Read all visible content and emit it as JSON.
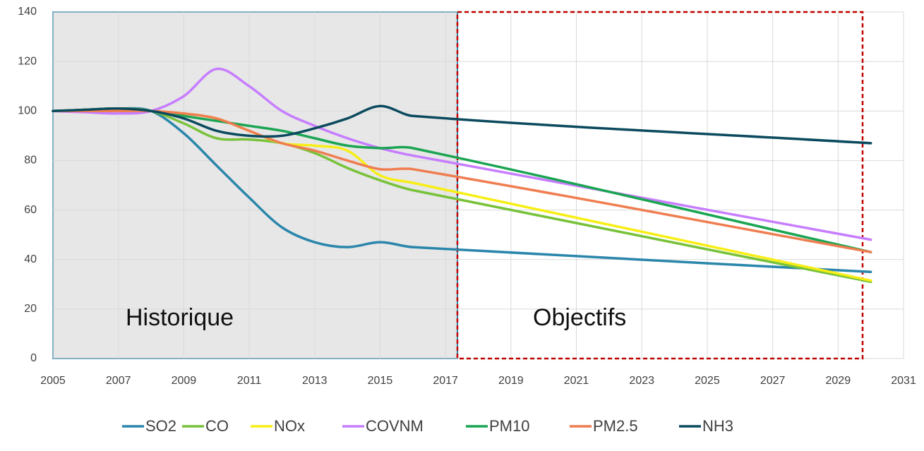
{
  "chart_data": {
    "type": "line",
    "x": [
      2005,
      2006,
      2007,
      2008,
      2009,
      2010,
      2011,
      2012,
      2013,
      2014,
      2015,
      2016,
      2030
    ],
    "series": [
      {
        "name": "SO2",
        "color": "#2a86ab",
        "values": [
          100,
          100.5,
          101,
          100,
          91,
          78,
          65,
          53,
          47,
          45,
          47,
          45,
          35
        ]
      },
      {
        "name": "CO",
        "color": "#78c23a",
        "values": [
          100,
          100.5,
          101,
          100,
          95,
          89,
          88.5,
          87,
          83,
          77,
          72,
          68,
          31
        ]
      },
      {
        "name": "NOx",
        "color": "#f7ee16",
        "values": [
          100,
          100,
          100,
          100,
          99,
          97,
          92,
          87,
          86,
          84,
          74,
          71,
          31.5
        ]
      },
      {
        "name": "COVNM",
        "color": "#c77dff",
        "values": [
          100,
          99.5,
          99,
          100,
          106,
          117,
          110,
          100,
          94,
          89,
          85,
          82,
          48
        ]
      },
      {
        "name": "PM10",
        "color": "#1aa552",
        "values": [
          100,
          100.5,
          101,
          100,
          98,
          96,
          94,
          92,
          89,
          86,
          85,
          85,
          43
        ]
      },
      {
        "name": "PM2.5",
        "color": "#ef7d50",
        "values": [
          100,
          100,
          100,
          100,
          99,
          97,
          92,
          87,
          84,
          80,
          76.5,
          76.5,
          43
        ]
      },
      {
        "name": "NH3",
        "color": "#0b4a5e",
        "values": [
          100,
          100.5,
          101,
          100,
          97,
          92,
          90,
          90,
          93,
          97,
          102,
          98,
          87
        ]
      }
    ],
    "annotations": [
      "Historique",
      "Objectifs"
    ],
    "xlim": [
      2005,
      2031
    ],
    "xticks": [
      2005,
      2007,
      2009,
      2011,
      2013,
      2015,
      2017,
      2019,
      2021,
      2023,
      2025,
      2027,
      2029,
      2031
    ],
    "ylim": [
      0,
      140
    ],
    "yticks": [
      0,
      20,
      40,
      60,
      80,
      100,
      120,
      140
    ],
    "grid": true,
    "legend": "bottom"
  }
}
